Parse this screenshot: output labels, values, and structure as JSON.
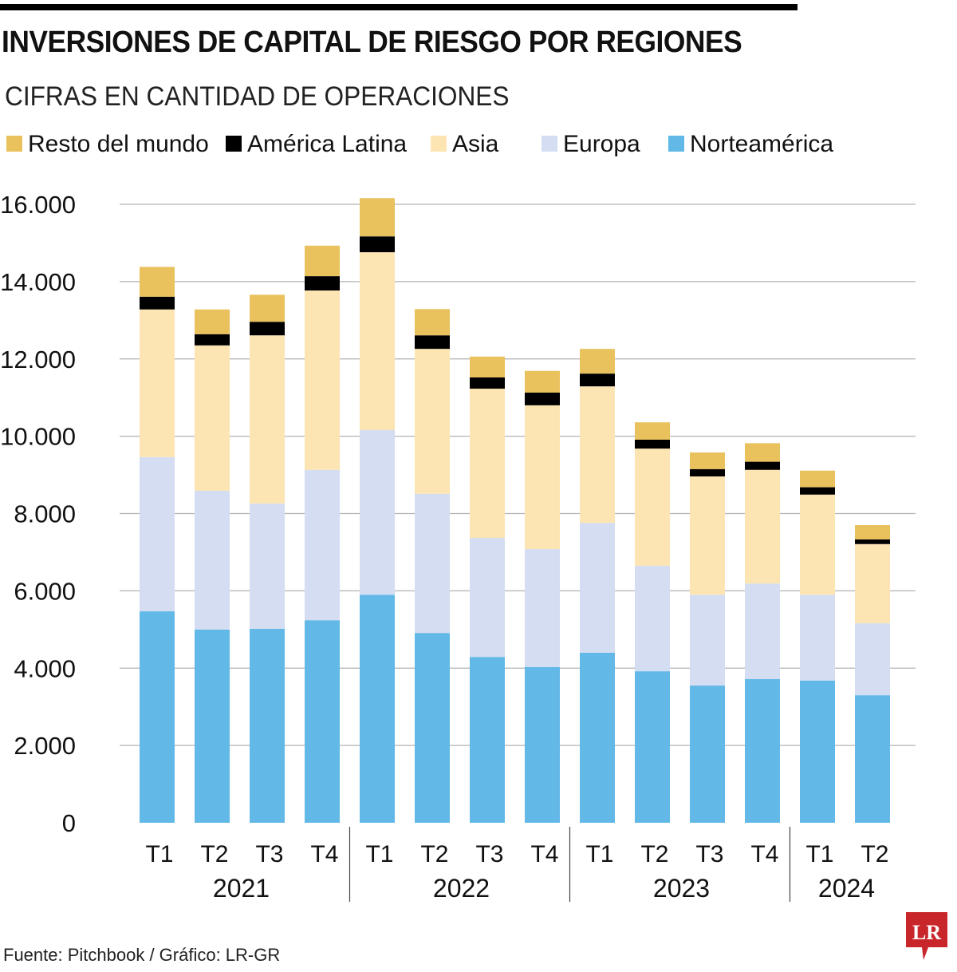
{
  "title": "INVERSIONES DE CAPITAL DE RIESGO POR REGIONES",
  "subtitle": "CIFRAS EN CANTIDAD DE OPERACIONES",
  "source": "Fuente: Pitchbook / Gráfico: LR-GR",
  "logo_text": "LR",
  "chart_data": {
    "type": "bar",
    "stacked": true,
    "categories": [
      "T1",
      "T2",
      "T3",
      "T4",
      "T1",
      "T2",
      "T3",
      "T4",
      "T1",
      "T2",
      "T3",
      "T4",
      "T1",
      "T2"
    ],
    "years": [
      {
        "label": "2021",
        "quarters": 4
      },
      {
        "label": "2022",
        "quarters": 4
      },
      {
        "label": "2023",
        "quarters": 4
      },
      {
        "label": "2024",
        "quarters": 2
      }
    ],
    "series": [
      {
        "name": "Norteamérica",
        "color": "#62b8e6",
        "values": [
          5470,
          5000,
          5020,
          5240,
          5900,
          4910,
          4290,
          4030,
          4400,
          3920,
          3550,
          3720,
          3680,
          3300
        ]
      },
      {
        "name": "Europa",
        "color": "#d4ddf1",
        "values": [
          3990,
          3590,
          3240,
          3890,
          4260,
          3600,
          3080,
          3050,
          3360,
          2730,
          2350,
          2470,
          2220,
          1860
        ]
      },
      {
        "name": "Asia",
        "color": "#fde5b3",
        "values": [
          3820,
          3760,
          4350,
          4640,
          4600,
          3750,
          3860,
          3720,
          3530,
          3030,
          3060,
          2940,
          2590,
          2050
        ]
      },
      {
        "name": "América Latina",
        "color": "#000000",
        "values": [
          330,
          290,
          350,
          370,
          410,
          350,
          290,
          330,
          330,
          230,
          190,
          210,
          190,
          120
        ]
      },
      {
        "name": "Resto del mundo",
        "color": "#e9c25d",
        "values": [
          770,
          640,
          700,
          790,
          990,
          680,
          540,
          560,
          640,
          450,
          430,
          480,
          430,
          370
        ]
      }
    ],
    "legend_order": [
      "Resto del mundo",
      "América Latina",
      "Asia",
      "Europa",
      "Norteamérica"
    ],
    "legend_position": "top",
    "yticks": [
      "0",
      "2.000",
      "4.000",
      "6.000",
      "8.000",
      "10.000",
      "12.000",
      "14.000",
      "16.000"
    ],
    "ylim": [
      0,
      16000
    ],
    "grid": true,
    "xlabel": "",
    "ylabel": ""
  }
}
